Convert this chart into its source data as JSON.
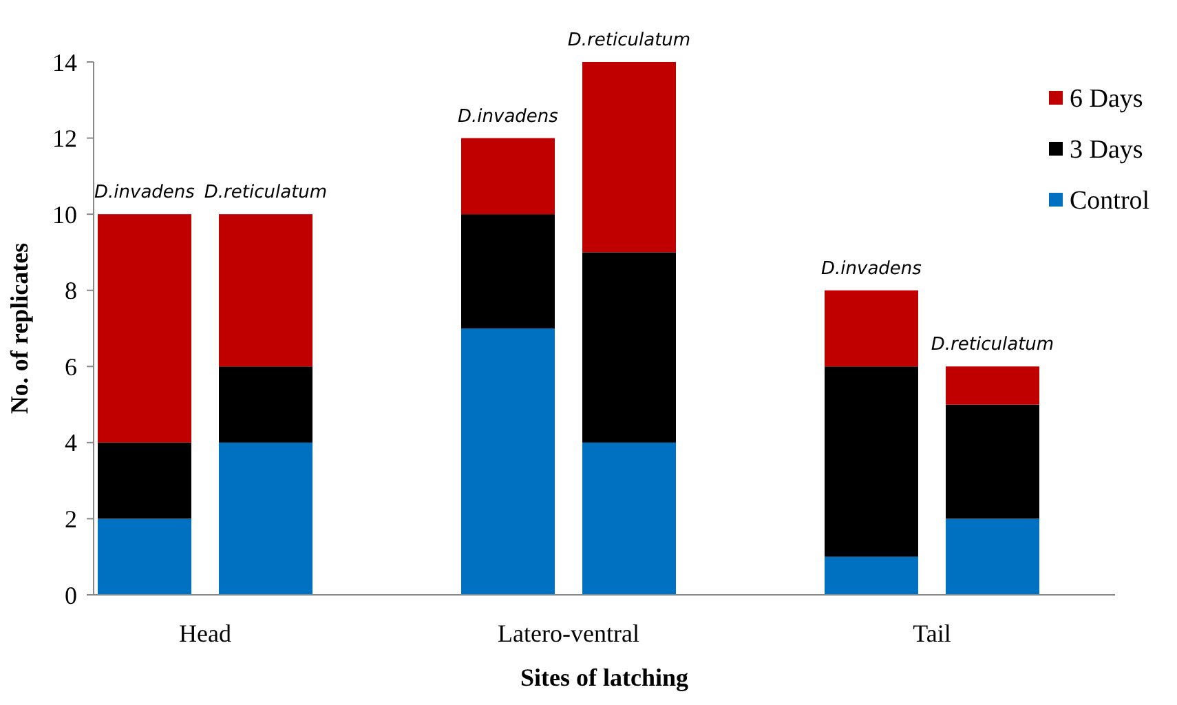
{
  "chart_data": {
    "type": "bar",
    "stacked": true,
    "xlabel": "Sites of latching",
    "ylabel": "No. of replicates",
    "categories": [
      null,
      null,
      null,
      null,
      null,
      null,
      null,
      null
    ],
    "series": [
      {
        "name": "Control",
        "color": "#0070c0",
        "values": [
          2,
          4,
          null,
          7,
          4,
          null,
          1,
          2
        ]
      },
      {
        "name": "3 Days",
        "color": "#000000",
        "values": [
          2,
          2,
          null,
          3,
          5,
          null,
          5,
          3
        ]
      },
      {
        "name": "6 Days",
        "color": "#c00000",
        "values": [
          6,
          4,
          null,
          2,
          5,
          null,
          2,
          1
        ]
      }
    ],
    "annotations": [
      "Head",
      "Latero-ventral",
      "Tail",
      {
        "text": "D.invadens",
        "y": 10
      },
      {
        "text": "D.reticulatum",
        "y": 10
      },
      {
        "text": "D.invadens",
        "y": 12
      },
      {
        "text": "D.reticulatum",
        "y": 14
      },
      {
        "text": "D.invadens",
        "y": 8
      },
      {
        "text": "D.reticulatum",
        "y": 6
      }
    ],
    "ylim": [
      0,
      14
    ],
    "yticks": [
      0,
      2,
      4,
      6,
      8,
      10,
      12,
      14
    ],
    "legend": "top right"
  }
}
